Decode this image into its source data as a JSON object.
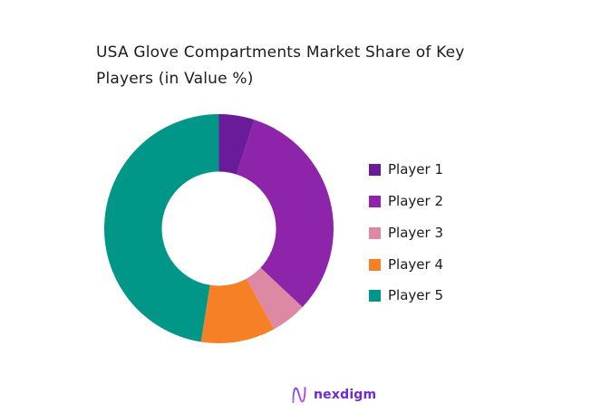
{
  "title": {
    "line1": "USA Glove Compartments Market Share of Key",
    "line2": "Players (in Value %)"
  },
  "legend": {
    "items": [
      {
        "label": "Player 1",
        "color": "#6a1b9a"
      },
      {
        "label": "Player 2",
        "color": "#8e24aa"
      },
      {
        "label": "Player 3",
        "color": "#de89a3"
      },
      {
        "label": "Player 4",
        "color": "#f58025"
      },
      {
        "label": "Player 5",
        "color": "#009688"
      }
    ]
  },
  "logo": {
    "text": "nexdigm",
    "icon": "nexdigm-wave-icon"
  },
  "chart_data": {
    "type": "pie",
    "subtype": "donut",
    "title": "USA Glove Compartments Market Share of Key Players (in Value %)",
    "categories": [
      "Player 1",
      "Player 2",
      "Player 3",
      "Player 4",
      "Player 5"
    ],
    "values": [
      5,
      32,
      5,
      10.5,
      47.5
    ],
    "colors": [
      "#6a1b9a",
      "#8e24aa",
      "#de89a3",
      "#f58025",
      "#009688"
    ],
    "start_angle_deg": 0,
    "direction": "clockwise",
    "legend_position": "right",
    "data_labels": false
  }
}
